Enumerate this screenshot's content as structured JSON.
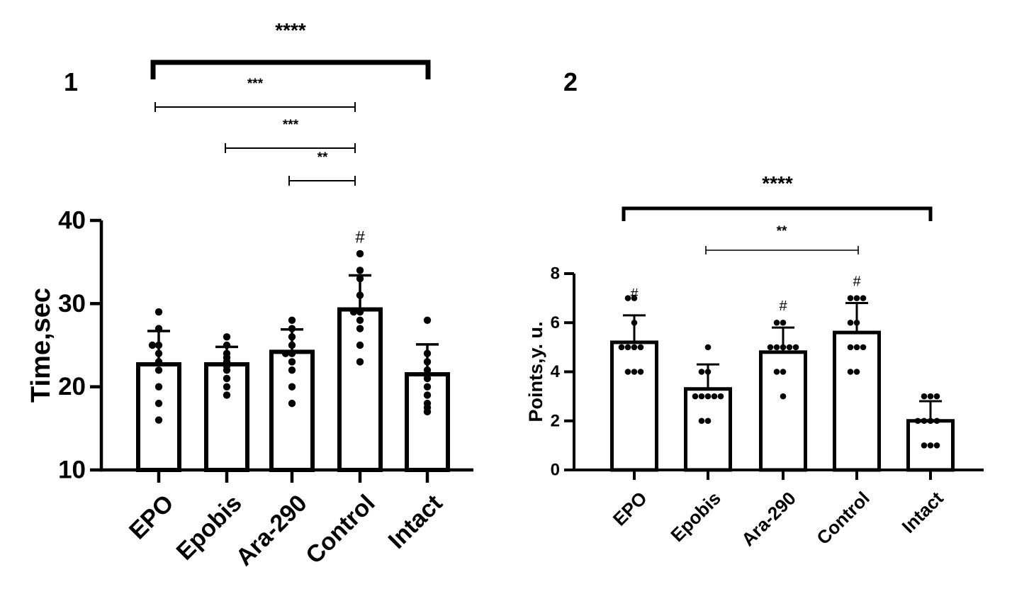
{
  "chart_data": [
    {
      "type": "bar",
      "panel_label": "1",
      "ylabel": "Time,sec",
      "xlabel": "",
      "ylim": [
        10,
        40
      ],
      "yticks": [
        "10",
        "20",
        "30",
        "40"
      ],
      "categories": [
        "EPO",
        "Epobis",
        "Ara-290",
        "Control",
        "Intact"
      ],
      "values": [
        22.7,
        22.7,
        24.2,
        29.3,
        21.5
      ],
      "errors": [
        4.0,
        2.1,
        2.7,
        4.1,
        3.6
      ],
      "points": [
        [
          29,
          27,
          25,
          25,
          24,
          23,
          22,
          20,
          18,
          16
        ],
        [
          26,
          25,
          24,
          23.5,
          23,
          22.5,
          22,
          21,
          20,
          19
        ],
        [
          28,
          27,
          26,
          25,
          24,
          24,
          23,
          22,
          20,
          18
        ],
        [
          36,
          34,
          33,
          31,
          29,
          29,
          28,
          27,
          25,
          23
        ],
        [
          28,
          24,
          23,
          22,
          21,
          20,
          19,
          18,
          17.5,
          17
        ]
      ],
      "hash_markers": [
        {
          "category": "Control",
          "text": "#"
        }
      ],
      "significance": [
        {
          "from": "EPO",
          "to": "Intact",
          "text": "****",
          "style": "bold"
        },
        {
          "from": "EPO",
          "to": "Control",
          "text": "***",
          "style": "thin"
        },
        {
          "from": "Epobis",
          "to": "Control",
          "text": "***",
          "style": "thin"
        },
        {
          "from": "Ara-290",
          "to": "Control",
          "text": "**",
          "style": "thin"
        }
      ]
    },
    {
      "type": "bar",
      "panel_label": "2",
      "ylabel": "Points,y. u.",
      "xlabel": "",
      "ylim": [
        0,
        8
      ],
      "yticks": [
        "0",
        "2",
        "4",
        "6",
        "8"
      ],
      "categories": [
        "EPO",
        "Epobis",
        "Ara-290",
        "Control",
        "Intact"
      ],
      "values": [
        5.2,
        3.3,
        4.8,
        5.6,
        2.0
      ],
      "errors": [
        1.1,
        1.0,
        1.0,
        1.2,
        0.8
      ],
      "points": [
        [
          7,
          7,
          6,
          5,
          5,
          5,
          5,
          4,
          4,
          4
        ],
        [
          5,
          4,
          4,
          3,
          3,
          3,
          3,
          2,
          2,
          3
        ],
        [
          6,
          6,
          5,
          5,
          5,
          5,
          4,
          4,
          3,
          5
        ],
        [
          7,
          7,
          7,
          6,
          6,
          5,
          5,
          5,
          4,
          4
        ],
        [
          3,
          3,
          3,
          2,
          2,
          2,
          2,
          1,
          1,
          1
        ]
      ],
      "hash_markers": [
        {
          "category": "EPO",
          "text": "#"
        },
        {
          "category": "Ara-290",
          "text": "#"
        },
        {
          "category": "Control",
          "text": "#"
        }
      ],
      "significance": [
        {
          "from": "EPO",
          "to": "Intact",
          "text": "****",
          "style": "bold"
        },
        {
          "from": "Epobis",
          "to": "Control",
          "text": "**",
          "style": "thin"
        }
      ]
    }
  ]
}
